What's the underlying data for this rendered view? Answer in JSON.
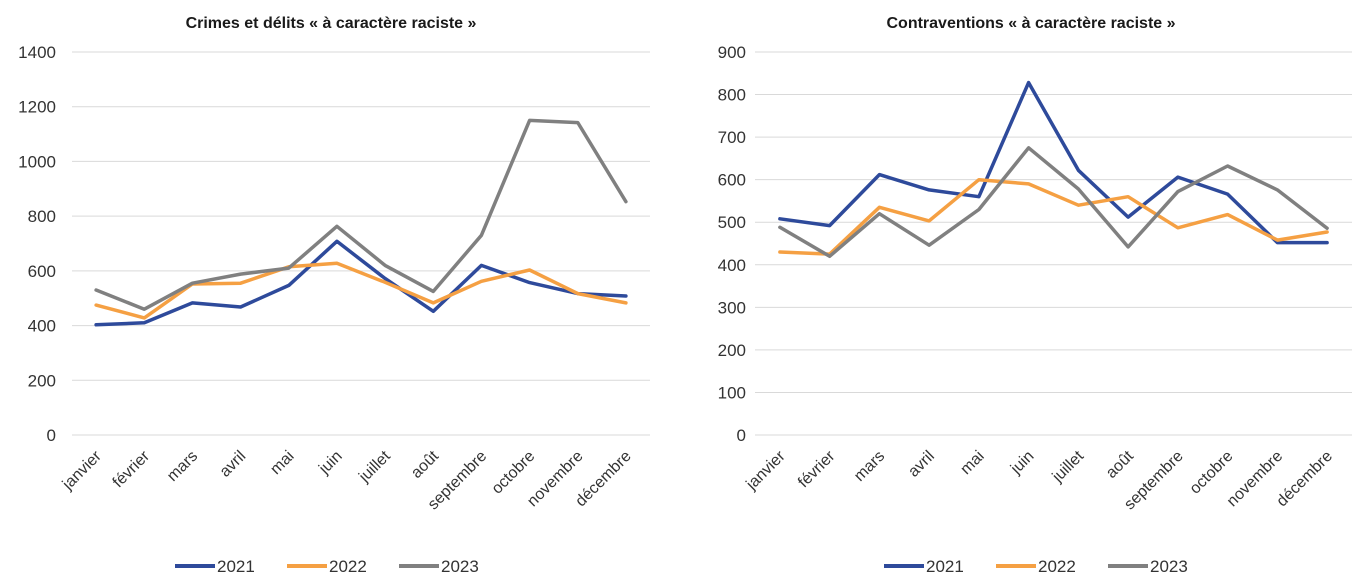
{
  "chart_data": [
    {
      "type": "line",
      "title": "Crimes et délits « à caractère raciste »",
      "xlabel": "",
      "ylabel": "",
      "ylim": [
        0,
        1400
      ],
      "yticks": [
        0,
        200,
        400,
        600,
        800,
        1000,
        1200,
        1400
      ],
      "categories": [
        "janvier",
        "février",
        "mars",
        "avril",
        "mai",
        "juin",
        "juillet",
        "août",
        "septembre",
        "octobre",
        "novembre",
        "décembre"
      ],
      "grid": true,
      "legend": "bottom",
      "series": [
        {
          "name": "2021",
          "color": "#2e4a9b",
          "values": [
            403,
            410,
            483,
            468,
            547,
            708,
            572,
            452,
            620,
            557,
            517,
            508
          ]
        },
        {
          "name": "2022",
          "color": "#f5a043",
          "values": [
            475,
            428,
            552,
            555,
            615,
            628,
            558,
            483,
            562,
            603,
            517,
            483
          ]
        },
        {
          "name": "2023",
          "color": "#808080",
          "values": [
            530,
            460,
            555,
            588,
            610,
            763,
            620,
            525,
            730,
            1150,
            1142,
            853
          ]
        }
      ]
    },
    {
      "type": "line",
      "title": "Contraventions « à caractère raciste »",
      "xlabel": "",
      "ylabel": "",
      "ylim": [
        0,
        900
      ],
      "yticks": [
        0,
        100,
        200,
        300,
        400,
        500,
        600,
        700,
        800,
        900
      ],
      "categories": [
        "janvier",
        "février",
        "mars",
        "avril",
        "mai",
        "juin",
        "juillet",
        "août",
        "septembre",
        "octobre",
        "novembre",
        "décembre"
      ],
      "grid": true,
      "legend": "bottom",
      "series": [
        {
          "name": "2021",
          "color": "#2e4a9b",
          "values": [
            508,
            492,
            612,
            576,
            560,
            828,
            622,
            512,
            606,
            566,
            452,
            452
          ]
        },
        {
          "name": "2022",
          "color": "#f5a043",
          "values": [
            430,
            425,
            535,
            503,
            600,
            590,
            540,
            560,
            487,
            518,
            458,
            477
          ]
        },
        {
          "name": "2023",
          "color": "#808080",
          "values": [
            488,
            420,
            520,
            446,
            530,
            675,
            578,
            442,
            572,
            632,
            576,
            486
          ]
        }
      ]
    }
  ]
}
